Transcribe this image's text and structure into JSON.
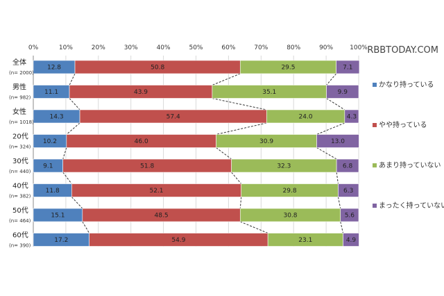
{
  "watermark": "RBBTODAY.COM",
  "chart_data": {
    "type": "bar",
    "orientation": "horizontal-stacked-100",
    "xlim": [
      0,
      100
    ],
    "x_ticks": [
      "0%",
      "10%",
      "20%",
      "30%",
      "40%",
      "50%",
      "60%",
      "70%",
      "80%",
      "90%",
      "100%"
    ],
    "categories": [
      {
        "label": "全体",
        "n": "(n= 2000)"
      },
      {
        "label": "男性",
        "n": "(n= 982)"
      },
      {
        "label": "女性",
        "n": "(n= 1018)"
      },
      {
        "label": "20代",
        "n": "(n= 324)"
      },
      {
        "label": "30代",
        "n": "(n= 440)"
      },
      {
        "label": "40代",
        "n": "(n= 382)"
      },
      {
        "label": "50代",
        "n": "(n= 464)"
      },
      {
        "label": "60代",
        "n": "(n= 390)"
      }
    ],
    "series": [
      {
        "name": "かなり持っている",
        "color": "#4f81bd",
        "values": [
          12.8,
          11.1,
          14.3,
          10.2,
          9.1,
          11.8,
          15.1,
          17.2
        ]
      },
      {
        "name": "やや持っている",
        "color": "#c0504d",
        "values": [
          50.8,
          43.9,
          57.4,
          46.0,
          51.8,
          52.1,
          48.5,
          54.9
        ]
      },
      {
        "name": "あまり持っていない",
        "color": "#9bbb59",
        "values": [
          29.5,
          35.1,
          24.0,
          30.9,
          32.3,
          29.8,
          30.8,
          23.1
        ]
      },
      {
        "name": "まったく持っていない",
        "color": "#8064a2",
        "values": [
          7.1,
          9.9,
          4.3,
          13.0,
          6.8,
          6.3,
          5.6,
          4.9
        ]
      }
    ],
    "legend_position": "right",
    "connector_lines": "dashed",
    "grid": true
  }
}
